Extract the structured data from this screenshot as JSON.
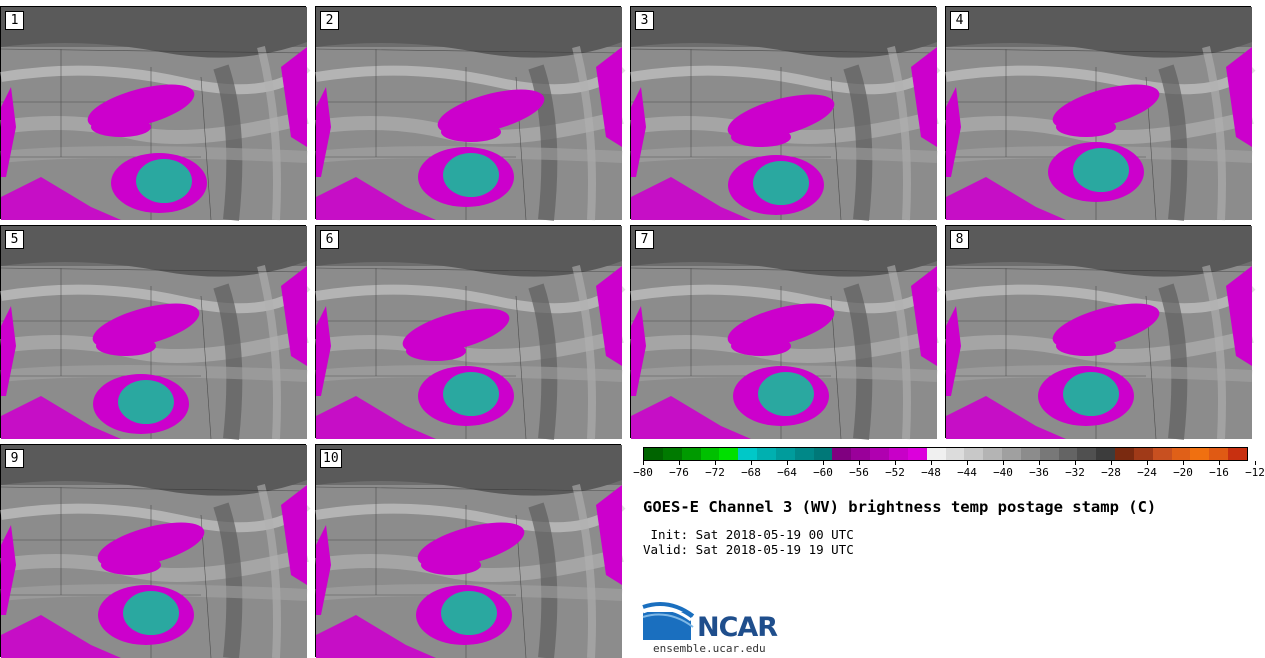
{
  "stamps": [
    {
      "label": "1"
    },
    {
      "label": "2"
    },
    {
      "label": "3"
    },
    {
      "label": "4"
    },
    {
      "label": "5"
    },
    {
      "label": "6"
    },
    {
      "label": "7"
    },
    {
      "label": "8"
    },
    {
      "label": "9"
    },
    {
      "label": "10"
    }
  ],
  "colorbar": {
    "ticks": [
      "−80",
      "−76",
      "−72",
      "−68",
      "−64",
      "−60",
      "−56",
      "−52",
      "−48",
      "−44",
      "−40",
      "−36",
      "−32",
      "−28",
      "−24",
      "−20",
      "−16",
      "−12"
    ],
    "colors": [
      "#006400",
      "#007a00",
      "#009a00",
      "#00c000",
      "#00e000",
      "#00c8c8",
      "#00b0b0",
      "#009c9c",
      "#008888",
      "#007878",
      "#800080",
      "#9a009a",
      "#b000b0",
      "#c800c8",
      "#dc00dc",
      "#f0f0f0",
      "#dcdcdc",
      "#c8c8c8",
      "#b4b4b4",
      "#a0a0a0",
      "#8c8c8c",
      "#787878",
      "#646464",
      "#505050",
      "#3c3c3c",
      "#7a2a10",
      "#a03a18",
      "#c85020",
      "#e06018",
      "#f07010",
      "#e05a14",
      "#c83010"
    ]
  },
  "title": "GOES-E Channel 3 (WV) brightness temp postage stamp (C)",
  "init_line": " Init: Sat 2018-05-19 00 UTC",
  "valid_line": "Valid: Sat 2018-05-19 19 UTC",
  "logo_text": "NCAR",
  "site": "ensemble.ucar.edu",
  "colors": {
    "convective_magenta": "#cc00cc",
    "cold_core_teal": "#2aa8a0",
    "background_gray": "#8a8a8a"
  }
}
